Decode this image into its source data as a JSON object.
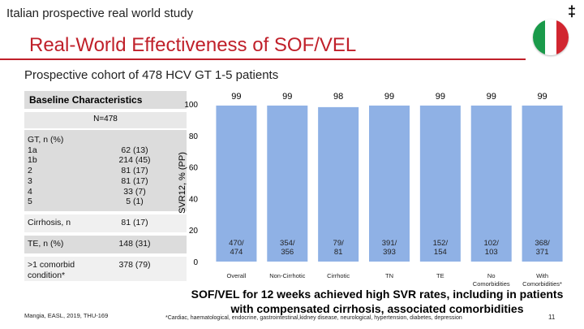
{
  "header": {
    "study_label": "Italian prospective real world study",
    "dagger": "‡",
    "title": "Real-World Effectiveness of SOF/VEL",
    "subtitle": "Prospective cohort of 478 HCV GT 1-5 patients",
    "flag_colors": [
      "#1a9a4a",
      "#ffffff",
      "#d12630"
    ]
  },
  "table": {
    "header": "Baseline Characteristics",
    "n_label": "N=478",
    "rows": [
      {
        "label": "GT, n (%)\n1a\n1b\n2\n3\n4\n5",
        "value": "\n62 (13)\n214 (45)\n81 (17)\n81 (17)\n33 (7)\n5 (1)"
      },
      {
        "label": "Cirrhosis, n",
        "value": "81 (17)"
      },
      {
        "label": "TE, n (%)",
        "value": "148 (31)"
      },
      {
        "label": ">1 comorbid\ncondition*",
        "value": "378 (79)"
      }
    ],
    "band_colors": [
      "#dcdcdc",
      "#f0f0f0"
    ]
  },
  "chart_data": {
    "type": "bar",
    "ylabel": "SVR12, % (PP)",
    "ylim": [
      0,
      100
    ],
    "yticks": [
      0,
      20,
      40,
      60,
      80,
      100
    ],
    "bar_color": "#8fb1e5",
    "categories": [
      "Overall",
      "Non-Cirrhotic",
      "Cirrhotic",
      "TN",
      "TE",
      "No\nComorbidities",
      "With\nComorbidities*"
    ],
    "values": [
      99,
      99,
      98,
      99,
      99,
      99,
      99
    ],
    "value_labels": [
      "99",
      "99",
      "98",
      "99",
      "99",
      "99",
      "99"
    ],
    "counts": [
      "470/\n474",
      "354/\n356",
      "79/\n81",
      "391/\n393",
      "152/\n154",
      "102/\n103",
      "368/\n371"
    ]
  },
  "footer": {
    "conclusion": "SOF/VEL for 12 weeks achieved high SVR rates, including in patients with compensated cirrhosis, associated comorbidities",
    "citation": "Mangia, EASL, 2019, THU-169",
    "footnote": "*Cardiac, haematological, endocrine, gastrointestinal,kidney disease, neurological, hypertension, diabetes, depression",
    "page_number": "11"
  }
}
